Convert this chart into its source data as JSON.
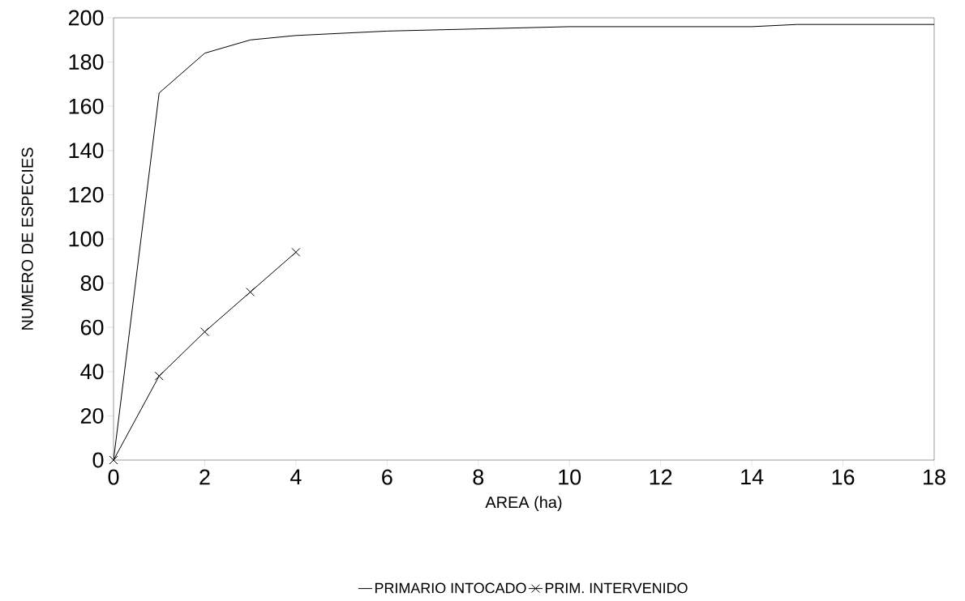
{
  "chart_data": {
    "type": "line",
    "xlabel": "AREA (ha)",
    "ylabel": "NUMERO DE ESPECIES",
    "xlim": [
      0,
      18
    ],
    "ylim": [
      0,
      200
    ],
    "xticks": [
      0,
      2,
      4,
      6,
      8,
      10,
      12,
      14,
      16,
      18
    ],
    "yticks": [
      0,
      20,
      40,
      60,
      80,
      100,
      120,
      140,
      160,
      180,
      200
    ],
    "legend": "bottom",
    "series": [
      {
        "name": "PRIMARIO INTOCADO",
        "color": "#000000",
        "marker": "none",
        "x": [
          0,
          1,
          2,
          3,
          4,
          5,
          6,
          8,
          10,
          12,
          14,
          15,
          18
        ],
        "values": [
          0,
          166,
          184,
          190,
          192,
          193,
          194,
          195,
          196,
          196,
          196,
          197,
          197
        ]
      },
      {
        "name": "PRIM. INTERVENIDO",
        "color": "#000000",
        "marker": "cross",
        "x": [
          0,
          1,
          2,
          3,
          4
        ],
        "values": [
          0,
          38,
          58,
          76,
          94
        ]
      }
    ]
  }
}
